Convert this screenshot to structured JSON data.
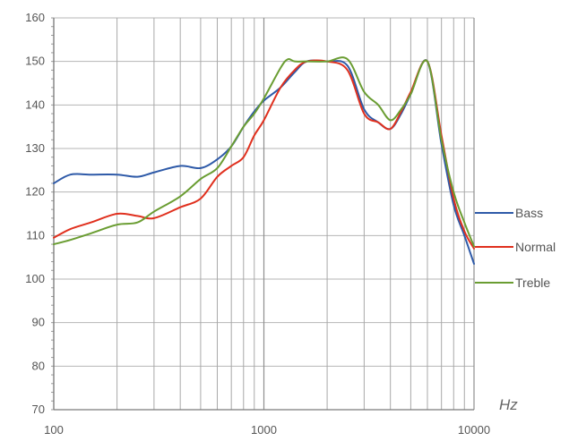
{
  "chart_data": {
    "type": "line",
    "title": "",
    "xlabel": "",
    "ylabel": "",
    "x_scale": "log",
    "xlim": [
      100,
      10000
    ],
    "ylim": [
      70,
      160
    ],
    "unit_label": "Hz",
    "x_ticks": [
      {
        "value": 100,
        "label": "100"
      },
      {
        "value": 1000,
        "label": "1000"
      },
      {
        "value": 10000,
        "label": "10000"
      }
    ],
    "y_ticks": [
      {
        "value": 70,
        "label": "70"
      },
      {
        "value": 80,
        "label": "80"
      },
      {
        "value": 90,
        "label": "90"
      },
      {
        "value": 100,
        "label": "100"
      },
      {
        "value": 110,
        "label": "110"
      },
      {
        "value": 120,
        "label": "120"
      },
      {
        "value": 130,
        "label": "130"
      },
      {
        "value": 140,
        "label": "140"
      },
      {
        "value": 150,
        "label": "150"
      },
      {
        "value": 160,
        "label": "160"
      }
    ],
    "grid": true,
    "legend_position": "right",
    "series": [
      {
        "name": "Bass",
        "color": "#2e5aa8",
        "x": [
          100,
          120,
          150,
          200,
          250,
          300,
          400,
          500,
          600,
          700,
          800,
          900,
          1000,
          1200,
          1400,
          1600,
          2000,
          2500,
          3000,
          3500,
          4000,
          4500,
          5000,
          6000,
          7000,
          8000,
          9000,
          10000
        ],
        "y": [
          122,
          124,
          124,
          124,
          123.5,
          124.5,
          126,
          125.5,
          127.5,
          130.5,
          135,
          138.5,
          141,
          144,
          147.5,
          150,
          150,
          149,
          139,
          136,
          134.5,
          138,
          142.5,
          150,
          131,
          117,
          110,
          103.5
        ]
      },
      {
        "name": "Normal",
        "color": "#e0301e",
        "x": [
          100,
          120,
          150,
          200,
          250,
          300,
          400,
          500,
          600,
          700,
          800,
          900,
          1000,
          1200,
          1400,
          1600,
          2000,
          2500,
          3000,
          3500,
          4000,
          4500,
          5000,
          6000,
          7000,
          8000,
          9000,
          10000
        ],
        "y": [
          109.5,
          111.5,
          113,
          115,
          114.5,
          114,
          116.5,
          118.5,
          123.5,
          126,
          128,
          133,
          136.5,
          144,
          148,
          150,
          150,
          148,
          138,
          136,
          134.5,
          138.5,
          143,
          150,
          133,
          118.5,
          111,
          107
        ]
      },
      {
        "name": "Treble",
        "color": "#6a9d32",
        "x": [
          100,
          120,
          150,
          200,
          250,
          300,
          400,
          500,
          600,
          700,
          800,
          900,
          1000,
          1200,
          1300,
          1400,
          1600,
          2000,
          2500,
          3000,
          3500,
          4000,
          4500,
          5000,
          6000,
          7000,
          8000,
          9000,
          10000
        ],
        "y": [
          108,
          109,
          110.5,
          112.5,
          113,
          115.5,
          119,
          123,
          125.5,
          130.5,
          135,
          138,
          141.5,
          148.5,
          150.5,
          150,
          150,
          150,
          150.5,
          143,
          140,
          136.5,
          139,
          142.5,
          150,
          132,
          120,
          113,
          107.5
        ]
      }
    ]
  }
}
